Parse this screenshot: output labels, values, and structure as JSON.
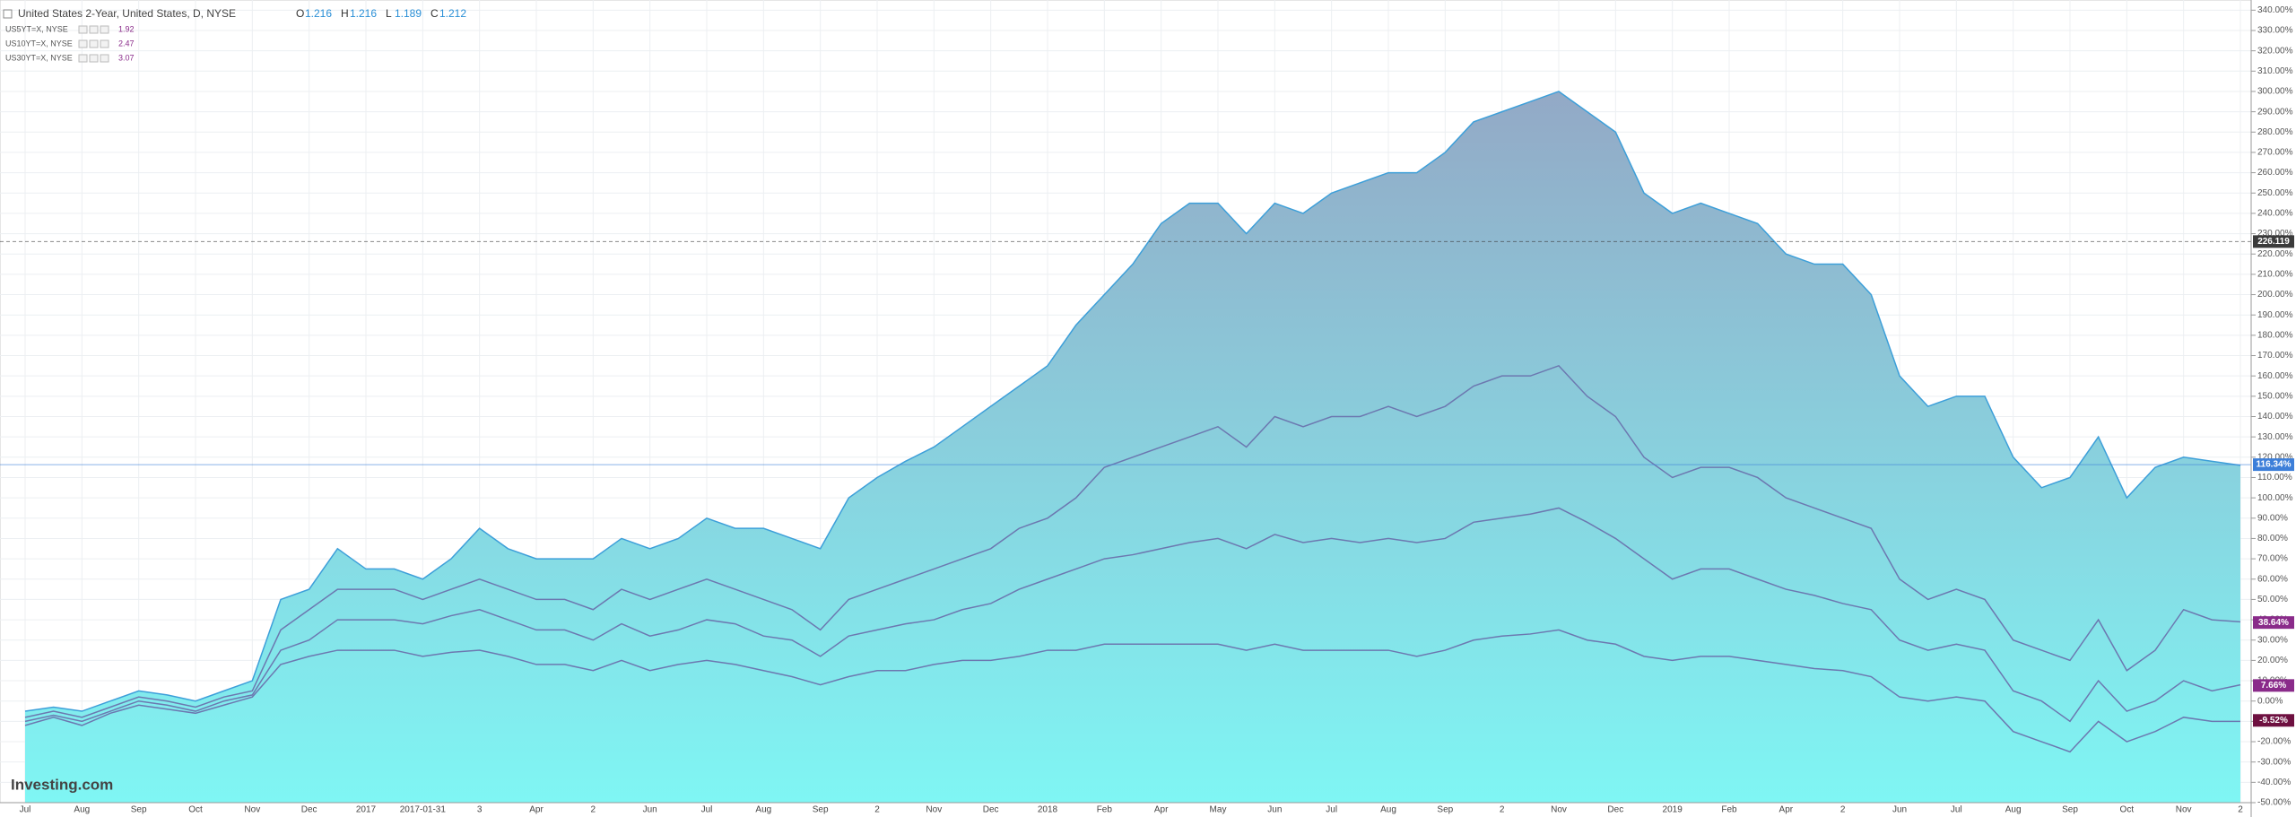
{
  "chart_data": {
    "type": "area",
    "title": "United States 2-Year, United States, D, NYSE",
    "ohlc": [
      {
        "key": "O",
        "value": 1.216
      },
      {
        "key": "H",
        "value": 1.216
      },
      {
        "key": "L",
        "value": 1.189
      },
      {
        "key": "C",
        "value": 1.212
      }
    ],
    "logo": "Investing.com",
    "categories": [
      "Jul",
      null,
      "Aug",
      null,
      "Sep",
      null,
      "Oct",
      null,
      "Nov",
      null,
      "Dec",
      null,
      "2017",
      null,
      "2017-01-31",
      null,
      "3",
      null,
      "Apr",
      null,
      "2",
      null,
      "Jun",
      null,
      "Jul",
      null,
      "Aug",
      null,
      "Sep",
      null,
      "2",
      null,
      "Nov",
      null,
      "Dec",
      null,
      "2018",
      null,
      "Feb",
      null,
      "Apr",
      null,
      "May",
      null,
      "Jun",
      null,
      "Jul",
      null,
      "Aug",
      null,
      "Sep",
      null,
      "2",
      null,
      "Nov",
      null,
      "Dec",
      null,
      "2019",
      null,
      "Feb",
      null,
      "Apr",
      null,
      "2",
      null,
      "Jun",
      null,
      "Jul",
      null,
      "Aug",
      null,
      "Sep",
      null,
      "Oct",
      null,
      "Nov",
      null,
      "2"
    ],
    "series": [
      {
        "name": "United States 2-Year",
        "color": "#3d9fd9",
        "fill_top": "#93a9c6",
        "fill_bottom": "#7ff6f4",
        "values": [
          -5,
          -3,
          -5,
          0,
          5,
          3,
          0,
          5,
          10,
          50,
          55,
          75,
          65,
          65,
          60,
          70,
          85,
          75,
          70,
          70,
          70,
          80,
          75,
          80,
          90,
          85,
          85,
          80,
          75,
          100,
          110,
          118,
          125,
          135,
          145,
          155,
          165,
          185,
          200,
          215,
          235,
          245,
          245,
          230,
          245,
          240,
          250,
          255,
          260,
          260,
          270,
          285,
          290,
          295,
          300,
          290,
          280,
          250,
          240,
          245,
          240,
          235,
          220,
          215,
          215,
          200,
          160,
          145,
          150,
          150,
          120,
          105,
          110,
          130,
          100,
          115,
          120,
          118,
          116
        ]
      },
      {
        "name": "US5YT=X, NYSE",
        "legend_value": 1.92,
        "color": "#6c78b0",
        "values": [
          -8,
          -5,
          -8,
          -3,
          2,
          0,
          -3,
          2,
          5,
          35,
          45,
          55,
          55,
          55,
          50,
          55,
          60,
          55,
          50,
          50,
          45,
          55,
          50,
          55,
          60,
          55,
          50,
          45,
          35,
          50,
          55,
          60,
          65,
          70,
          75,
          85,
          90,
          100,
          115,
          120,
          125,
          130,
          135,
          125,
          140,
          135,
          140,
          140,
          145,
          140,
          145,
          155,
          160,
          160,
          165,
          150,
          140,
          120,
          110,
          115,
          115,
          110,
          100,
          95,
          90,
          85,
          60,
          50,
          55,
          50,
          30,
          25,
          20,
          40,
          15,
          25,
          45,
          40,
          39
        ]
      },
      {
        "name": "US10YT=X, NYSE",
        "legend_value": 2.47,
        "color": "#6c78b0",
        "values": [
          -10,
          -7,
          -10,
          -5,
          0,
          -2,
          -5,
          0,
          3,
          25,
          30,
          40,
          40,
          40,
          38,
          42,
          45,
          40,
          35,
          35,
          30,
          38,
          32,
          35,
          40,
          38,
          32,
          30,
          22,
          32,
          35,
          38,
          40,
          45,
          48,
          55,
          60,
          65,
          70,
          72,
          75,
          78,
          80,
          75,
          82,
          78,
          80,
          78,
          80,
          78,
          80,
          88,
          90,
          92,
          95,
          88,
          80,
          70,
          60,
          65,
          65,
          60,
          55,
          52,
          48,
          45,
          30,
          25,
          28,
          25,
          5,
          0,
          -10,
          10,
          -5,
          0,
          10,
          5,
          8
        ]
      },
      {
        "name": "US30YT=X, NYSE",
        "legend_value": 3.07,
        "color": "#6c78b0",
        "values": [
          -12,
          -8,
          -12,
          -6,
          -2,
          -4,
          -6,
          -2,
          2,
          18,
          22,
          25,
          25,
          25,
          22,
          24,
          25,
          22,
          18,
          18,
          15,
          20,
          15,
          18,
          20,
          18,
          15,
          12,
          8,
          12,
          15,
          15,
          18,
          20,
          20,
          22,
          25,
          25,
          28,
          28,
          28,
          28,
          28,
          25,
          28,
          25,
          25,
          25,
          25,
          22,
          25,
          30,
          32,
          33,
          35,
          30,
          28,
          22,
          20,
          22,
          22,
          20,
          18,
          16,
          15,
          12,
          2,
          0,
          2,
          0,
          -15,
          -20,
          -25,
          -10,
          -20,
          -15,
          -8,
          -10,
          -10
        ]
      }
    ],
    "price_labels": [
      {
        "value": 226.119,
        "label": "226.119",
        "color": "#3b3b3b"
      },
      {
        "value": 116.34,
        "label": "116.34%",
        "color": "#3d7fd9"
      },
      {
        "value": 38.64,
        "label": "38.64%",
        "color": "#8a2b8a"
      },
      {
        "value": 7.66,
        "label": "7.66%",
        "color": "#8a2b8a"
      },
      {
        "value": -9.52,
        "label": "-9.52%",
        "color": "#6e1040"
      }
    ],
    "ylim": [
      -50,
      345
    ],
    "yticks": [
      {
        "value": -50,
        "label": "-50.00%"
      },
      {
        "value": -40,
        "label": "-40.00%"
      },
      {
        "value": -30,
        "label": "-30.00%"
      },
      {
        "value": -20,
        "label": "-20.00%"
      },
      {
        "value": -10,
        "label": "-10.00%"
      },
      {
        "value": 0,
        "label": "0.00%"
      },
      {
        "value": 10,
        "label": "10.00%"
      },
      {
        "value": 20,
        "label": "20.00%"
      },
      {
        "value": 30,
        "label": "30.00%"
      },
      {
        "value": 40,
        "label": "40.00%"
      },
      {
        "value": 50,
        "label": "50.00%"
      },
      {
        "value": 60,
        "label": "60.00%"
      },
      {
        "value": 70,
        "label": "70.00%"
      },
      {
        "value": 80,
        "label": "80.00%"
      },
      {
        "value": 90,
        "label": "90.00%"
      },
      {
        "value": 100,
        "label": "100.00%"
      },
      {
        "value": 110,
        "label": "110.00%"
      },
      {
        "value": 120,
        "label": "120.00%"
      },
      {
        "value": 130,
        "label": "130.00%"
      },
      {
        "value": 140,
        "label": "140.00%"
      },
      {
        "value": 150,
        "label": "150.00%"
      },
      {
        "value": 160,
        "label": "160.00%"
      },
      {
        "value": 170,
        "label": "170.00%"
      },
      {
        "value": 180,
        "label": "180.00%"
      },
      {
        "value": 190,
        "label": "190.00%"
      },
      {
        "value": 200,
        "label": "200.00%"
      },
      {
        "value": 210,
        "label": "210.00%"
      },
      {
        "value": 220,
        "label": "220.00%"
      },
      {
        "value": 230,
        "label": "230.00%"
      },
      {
        "value": 240,
        "label": "240.00%"
      },
      {
        "value": 250,
        "label": "250.00%"
      },
      {
        "value": 260,
        "label": "260.00%"
      },
      {
        "value": 270,
        "label": "270.00%"
      },
      {
        "value": 280,
        "label": "280.00%"
      },
      {
        "value": 290,
        "label": "290.00%"
      },
      {
        "value": 300,
        "label": "300.00%"
      },
      {
        "value": 310,
        "label": "310.00%"
      },
      {
        "value": 320,
        "label": "320.00%"
      },
      {
        "value": 330,
        "label": "330.00%"
      },
      {
        "value": 340,
        "label": "340.00%"
      }
    ],
    "grid": true
  }
}
